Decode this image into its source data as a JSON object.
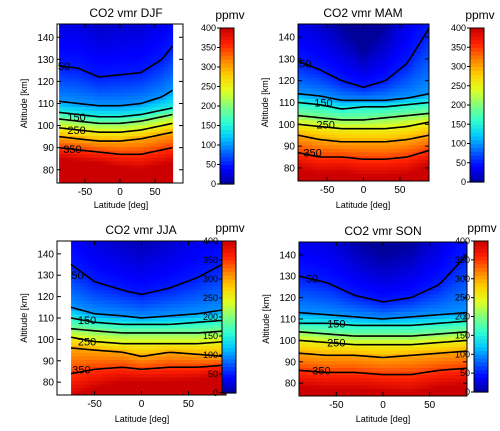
{
  "colors": {
    "colormap": [
      "#00009a",
      "#0000ff",
      "#0060ff",
      "#00c8ff",
      "#30ffd0",
      "#80ff80",
      "#e0ff20",
      "#ffd000",
      "#ff8000",
      "#ff2000",
      "#cc0000"
    ],
    "contour": "#000000"
  },
  "chart_data": [
    {
      "type": "heatmap",
      "title": "CO2 vmr  DJF",
      "xlabel": "Latitude [deg]",
      "ylabel": "Altitude [km]",
      "xlim": [
        -90,
        90
      ],
      "ylim": [
        74,
        146
      ],
      "xticks": [
        -50,
        0,
        50
      ],
      "yticks": [
        80,
        90,
        100,
        110,
        120,
        130,
        140
      ],
      "x_data_range": [
        -87,
        75
      ],
      "colorbar": {
        "label": "ppmv",
        "range": [
          0,
          400
        ],
        "ticks": [
          0,
          50,
          100,
          150,
          200,
          250,
          300,
          350,
          400
        ]
      },
      "contour_levels": [
        50,
        100,
        150,
        200,
        250,
        300,
        350
      ],
      "contour_labels": [
        {
          "text": "50",
          "x": -80,
          "y": 127
        },
        {
          "text": "150",
          "x": -62,
          "y": 104
        },
        {
          "text": "250",
          "x": -62,
          "y": 98
        },
        {
          "text": "350",
          "x": -68,
          "y": 89.5
        }
      ],
      "lat_nodes": [
        -87,
        -60,
        -30,
        0,
        30,
        60,
        75
      ],
      "contours": [
        {
          "level": 50,
          "alt": [
            127,
            126,
            122,
            123,
            124,
            130,
            136
          ]
        },
        {
          "level": 100,
          "alt": [
            111,
            110,
            109,
            109,
            110,
            113,
            116
          ]
        },
        {
          "level": 150,
          "alt": [
            106,
            105,
            104,
            104,
            105,
            107,
            108
          ]
        },
        {
          "level": 200,
          "alt": [
            103,
            102,
            101,
            101,
            102,
            104,
            105
          ]
        },
        {
          "level": 250,
          "alt": [
            99,
            98,
            97,
            97,
            98,
            100,
            101
          ]
        },
        {
          "level": 300,
          "alt": [
            95,
            94,
            93,
            93,
            94,
            96,
            97
          ]
        },
        {
          "level": 350,
          "alt": [
            90,
            89,
            88,
            87,
            87,
            89,
            90
          ]
        }
      ]
    },
    {
      "type": "heatmap",
      "title": "CO2 vmr  MAM",
      "xlabel": "Latitude [deg]",
      "ylabel": "Altitude [km]",
      "xlim": [
        -90,
        90
      ],
      "ylim": [
        74,
        146
      ],
      "xticks": [
        -50,
        0,
        50
      ],
      "yticks": [
        80,
        90,
        100,
        110,
        120,
        130,
        140
      ],
      "x_data_range": [
        -90,
        90
      ],
      "colorbar": {
        "label": "ppmv",
        "range": [
          0,
          400
        ],
        "ticks": [
          0,
          50,
          100,
          150,
          200,
          250,
          300,
          350,
          400
        ]
      },
      "contour_levels": [
        50,
        100,
        150,
        200,
        250,
        300,
        350
      ],
      "contour_labels": [
        {
          "text": "50",
          "x": -80,
          "y": 128
        },
        {
          "text": "150",
          "x": -55,
          "y": 110
        },
        {
          "text": "250",
          "x": -52,
          "y": 100
        },
        {
          "text": "350",
          "x": -70,
          "y": 87
        }
      ],
      "lat_nodes": [
        -90,
        -60,
        -30,
        0,
        30,
        60,
        90
      ],
      "contours": [
        {
          "level": 50,
          "alt": [
            129,
            125,
            120,
            117,
            120,
            128,
            144
          ]
        },
        {
          "level": 100,
          "alt": [
            114,
            113,
            111,
            111,
            111,
            112,
            114
          ]
        },
        {
          "level": 150,
          "alt": [
            110,
            109,
            107,
            108,
            108,
            109,
            110
          ]
        },
        {
          "level": 200,
          "alt": [
            104,
            103,
            102,
            102,
            103,
            104,
            105
          ]
        },
        {
          "level": 250,
          "alt": [
            100,
            99,
            98,
            98,
            98,
            99,
            101
          ]
        },
        {
          "level": 300,
          "alt": [
            95,
            93,
            92,
            92,
            92,
            93,
            95
          ]
        },
        {
          "level": 350,
          "alt": [
            87,
            85,
            85,
            84,
            84,
            85,
            88
          ]
        }
      ]
    },
    {
      "type": "heatmap",
      "title": "CO2 vmr  JJA",
      "xlabel": "Latitude [deg]",
      "ylabel": "Altitude [km]",
      "xlim": [
        -90,
        90
      ],
      "ylim": [
        74,
        146
      ],
      "xticks": [
        -50,
        0,
        50
      ],
      "yticks": [
        80,
        90,
        100,
        110,
        120,
        130,
        140
      ],
      "x_data_range": [
        -75,
        90
      ],
      "colorbar": {
        "label": "ppmv",
        "range": [
          0,
          400
        ],
        "ticks": [
          0,
          50,
          100,
          150,
          200,
          250,
          300,
          350,
          400
        ]
      },
      "contour_levels": [
        50,
        100,
        150,
        200,
        250,
        300,
        350
      ],
      "contour_labels": [
        {
          "text": "50",
          "x": -68,
          "y": 130
        },
        {
          "text": "150",
          "x": -58,
          "y": 109
        },
        {
          "text": "250",
          "x": -58,
          "y": 99
        },
        {
          "text": "350",
          "x": -64,
          "y": 86
        }
      ],
      "lat_nodes": [
        -75,
        -50,
        -20,
        0,
        30,
        60,
        90
      ],
      "contours": [
        {
          "level": 50,
          "alt": [
            135,
            127,
            123,
            121,
            124,
            129,
            136
          ]
        },
        {
          "level": 100,
          "alt": [
            115,
            112,
            111,
            110,
            111,
            112,
            114
          ]
        },
        {
          "level": 150,
          "alt": [
            110,
            108,
            107,
            107,
            107,
            108,
            109
          ]
        },
        {
          "level": 200,
          "alt": [
            105,
            104,
            103,
            103,
            103,
            103,
            104
          ]
        },
        {
          "level": 250,
          "alt": [
            101,
            99,
            98,
            98,
            98,
            98,
            99
          ]
        },
        {
          "level": 300,
          "alt": [
            96,
            95,
            94,
            92,
            94,
            93,
            92
          ]
        },
        {
          "level": 350,
          "alt": [
            84,
            86,
            87,
            86,
            87,
            87,
            88
          ]
        }
      ]
    },
    {
      "type": "heatmap",
      "title": "CO2 vmr  SON",
      "xlabel": "Latitude [deg]",
      "ylabel": "Altitude [km]",
      "xlim": [
        -90,
        90
      ],
      "ylim": [
        74,
        146
      ],
      "xticks": [
        -50,
        0,
        50
      ],
      "yticks": [
        80,
        90,
        100,
        110,
        120,
        130,
        140
      ],
      "x_data_range": [
        -90,
        90
      ],
      "colorbar": {
        "label": "ppmv",
        "range": [
          0,
          400
        ],
        "ticks": [
          0,
          50,
          100,
          150,
          200,
          250,
          300,
          350,
          400
        ]
      },
      "contour_levels": [
        50,
        100,
        150,
        200,
        250,
        300,
        350
      ],
      "contour_labels": [
        {
          "text": "50",
          "x": -76,
          "y": 129
        },
        {
          "text": "150",
          "x": -50,
          "y": 108
        },
        {
          "text": "250",
          "x": -50,
          "y": 99
        },
        {
          "text": "350",
          "x": -66,
          "y": 86
        }
      ],
      "lat_nodes": [
        -90,
        -60,
        -30,
        0,
        30,
        60,
        90
      ],
      "contours": [
        {
          "level": 50,
          "alt": [
            130,
            127,
            121,
            118,
            120,
            126,
            140
          ]
        },
        {
          "level": 100,
          "alt": [
            113,
            112,
            111,
            110,
            111,
            112,
            113
          ]
        },
        {
          "level": 150,
          "alt": [
            108,
            108,
            107,
            107,
            107,
            108,
            109
          ]
        },
        {
          "level": 200,
          "alt": [
            104,
            103,
            102,
            102,
            102,
            103,
            104
          ]
        },
        {
          "level": 250,
          "alt": [
            100,
            99,
            98,
            98,
            98,
            99,
            100
          ]
        },
        {
          "level": 300,
          "alt": [
            94,
            93,
            93,
            92,
            93,
            94,
            95
          ]
        },
        {
          "level": 350,
          "alt": [
            86,
            85,
            85,
            84,
            84,
            86,
            87
          ]
        }
      ]
    }
  ]
}
